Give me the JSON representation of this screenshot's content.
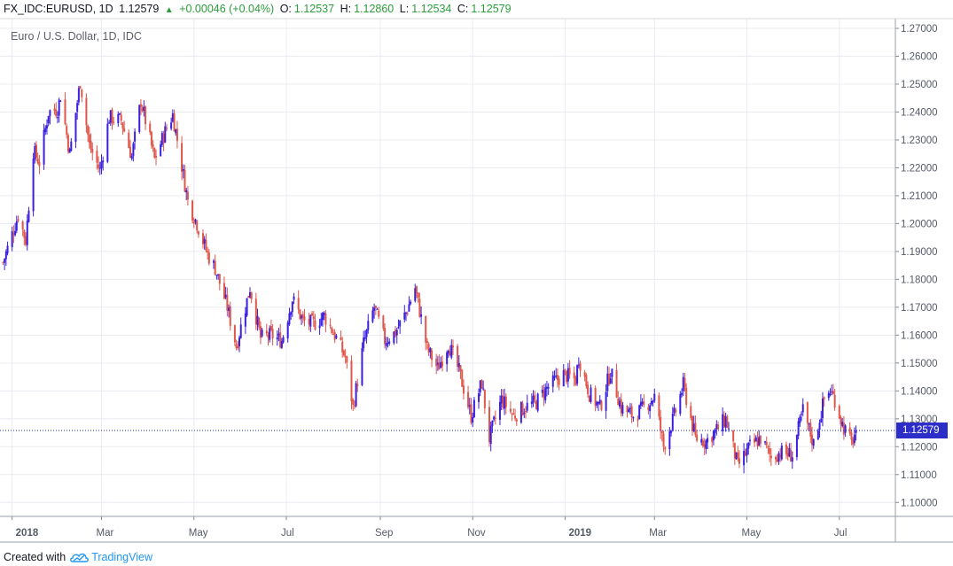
{
  "header": {
    "symbol": "FX_IDC:EURUSD, 1D",
    "last": "1.12579",
    "change": "+0.00046 (+0.04%)",
    "o_label": "O:",
    "o_value": "1.12537",
    "h_label": "H:",
    "h_value": "1.12860",
    "l_label": "L:",
    "l_value": "1.12534",
    "c_label": "C:",
    "c_value": "1.12579",
    "up_arrow_icon": "triangle-up-icon"
  },
  "subtitle": "Euro / U.S. Dollar, 1D, IDC",
  "footer": {
    "prefix": "Created with",
    "brand": "TradingView",
    "logo_icon": "tradingview-cloud-icon"
  },
  "colors": {
    "up": "#3a1fe0",
    "down": "#e0574a",
    "grid": "#e9ecf1",
    "axis": "#555a66",
    "price_line": "#2d2dc8"
  },
  "chart_data": {
    "type": "candlestick",
    "title": "Euro / U.S. Dollar, 1D, IDC",
    "x_tick_labels": [
      "2018",
      "Mar",
      "May",
      "Jul",
      "Sep",
      "Nov",
      "2019",
      "Mar",
      "May",
      "Jul"
    ],
    "x_tick_dates": [
      "2018-01-01",
      "2018-03-01",
      "2018-05-01",
      "2018-07-01",
      "2018-09-01",
      "2018-11-01",
      "2019-01-01",
      "2019-03-01",
      "2019-05-01",
      "2019-07-01"
    ],
    "y_tick_labels": [
      "1.27000",
      "1.26000",
      "1.25000",
      "1.24000",
      "1.23000",
      "1.22000",
      "1.21000",
      "1.20000",
      "1.19000",
      "1.18000",
      "1.17000",
      "1.16000",
      "1.15000",
      "1.14000",
      "1.13000",
      "1.12000",
      "1.11000",
      "1.10000"
    ],
    "ylim": [
      1.095,
      1.2735
    ],
    "xlim": [
      "2017-12-24",
      "2019-08-07"
    ],
    "last_price": 1.12579,
    "last_price_label": "1.12579",
    "grid": true,
    "close_series": [
      {
        "date": "2017-12-26",
        "close": 1.186
      },
      {
        "date": "2018-01-05",
        "close": 1.203
      },
      {
        "date": "2018-01-10",
        "close": 1.194
      },
      {
        "date": "2018-01-15",
        "close": 1.226
      },
      {
        "date": "2018-01-19",
        "close": 1.222
      },
      {
        "date": "2018-01-25",
        "close": 1.24
      },
      {
        "date": "2018-01-31",
        "close": 1.241
      },
      {
        "date": "2018-02-02",
        "close": 1.246
      },
      {
        "date": "2018-02-08",
        "close": 1.225
      },
      {
        "date": "2018-02-15",
        "close": 1.251
      },
      {
        "date": "2018-02-21",
        "close": 1.228
      },
      {
        "date": "2018-02-28",
        "close": 1.219
      },
      {
        "date": "2018-03-06",
        "close": 1.238
      },
      {
        "date": "2018-03-14",
        "close": 1.237
      },
      {
        "date": "2018-03-21",
        "close": 1.224
      },
      {
        "date": "2018-03-27",
        "close": 1.244
      },
      {
        "date": "2018-04-05",
        "close": 1.223
      },
      {
        "date": "2018-04-12",
        "close": 1.233
      },
      {
        "date": "2018-04-17",
        "close": 1.239
      },
      {
        "date": "2018-04-20",
        "close": 1.23
      },
      {
        "date": "2018-04-27",
        "close": 1.208
      },
      {
        "date": "2018-05-03",
        "close": 1.2
      },
      {
        "date": "2018-05-10",
        "close": 1.189
      },
      {
        "date": "2018-05-15",
        "close": 1.184
      },
      {
        "date": "2018-05-23",
        "close": 1.17
      },
      {
        "date": "2018-05-29",
        "close": 1.156
      },
      {
        "date": "2018-06-07",
        "close": 1.177
      },
      {
        "date": "2018-06-14",
        "close": 1.159
      },
      {
        "date": "2018-06-21",
        "close": 1.16
      },
      {
        "date": "2018-06-28",
        "close": 1.158
      },
      {
        "date": "2018-07-05",
        "close": 1.173
      },
      {
        "date": "2018-07-12",
        "close": 1.165
      },
      {
        "date": "2018-07-19",
        "close": 1.164
      },
      {
        "date": "2018-07-26",
        "close": 1.167
      },
      {
        "date": "2018-08-02",
        "close": 1.16
      },
      {
        "date": "2018-08-09",
        "close": 1.152
      },
      {
        "date": "2018-08-14",
        "close": 1.134
      },
      {
        "date": "2018-08-21",
        "close": 1.157
      },
      {
        "date": "2018-08-28",
        "close": 1.17
      },
      {
        "date": "2018-09-04",
        "close": 1.158
      },
      {
        "date": "2018-09-11",
        "close": 1.161
      },
      {
        "date": "2018-09-18",
        "close": 1.168
      },
      {
        "date": "2018-09-24",
        "close": 1.177
      },
      {
        "date": "2018-10-02",
        "close": 1.155
      },
      {
        "date": "2018-10-09",
        "close": 1.148
      },
      {
        "date": "2018-10-16",
        "close": 1.157
      },
      {
        "date": "2018-10-23",
        "close": 1.147
      },
      {
        "date": "2018-10-31",
        "close": 1.131
      },
      {
        "date": "2018-11-07",
        "close": 1.143
      },
      {
        "date": "2018-11-12",
        "close": 1.123
      },
      {
        "date": "2018-11-20",
        "close": 1.137
      },
      {
        "date": "2018-11-28",
        "close": 1.131
      },
      {
        "date": "2018-12-05",
        "close": 1.134
      },
      {
        "date": "2018-12-13",
        "close": 1.136
      },
      {
        "date": "2018-12-20",
        "close": 1.141
      },
      {
        "date": "2018-12-31",
        "close": 1.146
      },
      {
        "date": "2019-01-08",
        "close": 1.144
      },
      {
        "date": "2019-01-10",
        "close": 1.152
      },
      {
        "date": "2019-01-17",
        "close": 1.139
      },
      {
        "date": "2019-01-24",
        "close": 1.134
      },
      {
        "date": "2019-01-31",
        "close": 1.147
      },
      {
        "date": "2019-02-07",
        "close": 1.134
      },
      {
        "date": "2019-02-15",
        "close": 1.131
      },
      {
        "date": "2019-02-22",
        "close": 1.134
      },
      {
        "date": "2019-03-01",
        "close": 1.138
      },
      {
        "date": "2019-03-07",
        "close": 1.12
      },
      {
        "date": "2019-03-14",
        "close": 1.131
      },
      {
        "date": "2019-03-20",
        "close": 1.142
      },
      {
        "date": "2019-03-28",
        "close": 1.123
      },
      {
        "date": "2019-04-04",
        "close": 1.122
      },
      {
        "date": "2019-04-11",
        "close": 1.126
      },
      {
        "date": "2019-04-17",
        "close": 1.13
      },
      {
        "date": "2019-04-25",
        "close": 1.113
      },
      {
        "date": "2019-05-03",
        "close": 1.12
      },
      {
        "date": "2019-05-10",
        "close": 1.123
      },
      {
        "date": "2019-05-17",
        "close": 1.116
      },
      {
        "date": "2019-05-23",
        "close": 1.118
      },
      {
        "date": "2019-05-31",
        "close": 1.117
      },
      {
        "date": "2019-06-07",
        "close": 1.133
      },
      {
        "date": "2019-06-14",
        "close": 1.121
      },
      {
        "date": "2019-06-21",
        "close": 1.137
      },
      {
        "date": "2019-06-25",
        "close": 1.14
      },
      {
        "date": "2019-06-28",
        "close": 1.137
      },
      {
        "date": "2019-07-03",
        "close": 1.128
      },
      {
        "date": "2019-07-09",
        "close": 1.121
      },
      {
        "date": "2019-07-12",
        "close": 1.126
      }
    ]
  }
}
